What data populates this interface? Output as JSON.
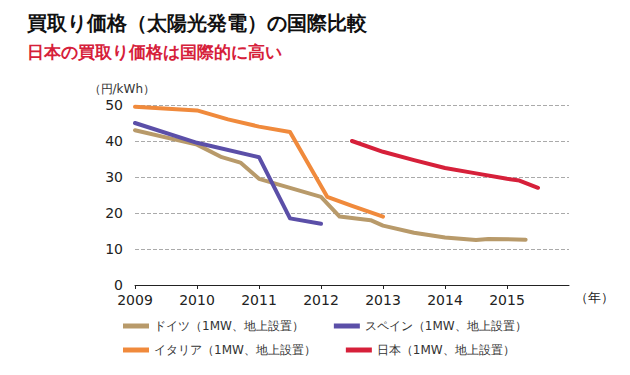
{
  "chart_data": {
    "type": "line",
    "title": "買取り価格（太陽光発電）の国際比較",
    "subtitle": "日本の買取り価格は国際的に高い",
    "x_label": "（年）",
    "y_label": "（円/kWh）",
    "xlim": [
      2009,
      2016
    ],
    "xticks": [
      2009,
      2010,
      2011,
      2012,
      2013,
      2014,
      2015
    ],
    "ylim": [
      0,
      50
    ],
    "yticks": [
      0,
      10,
      20,
      30,
      40,
      50
    ],
    "grid": true,
    "legend": "bottom",
    "series": [
      {
        "name": "ドイツ（1MW、地上設置）",
        "color": "#b89a6a",
        "x": [
          2009,
          2010,
          2010.4,
          2010.7,
          2011,
          2011.5,
          2012,
          2012.3,
          2012.8,
          2013,
          2013.5,
          2014,
          2014.5,
          2014.7,
          2015.3
        ],
        "values": [
          43,
          39,
          35.5,
          34,
          29.5,
          27,
          24.5,
          19,
          18,
          16.5,
          14.5,
          13.2,
          12.5,
          12.8,
          12.6
        ]
      },
      {
        "name": "スペイン（1MW、地上設置）",
        "color": "#5b4fa8",
        "x": [
          2009,
          2010,
          2011,
          2011.5,
          2012
        ],
        "values": [
          45,
          39.5,
          35.5,
          18.5,
          17
        ]
      },
      {
        "name": "イタリア（1MW、地上設置）",
        "color": "#f08a3c",
        "x": [
          2009,
          2010,
          2010.5,
          2011,
          2011.5,
          2012.1,
          2012.5,
          2013
        ],
        "values": [
          49.5,
          48.5,
          46,
          44,
          42.5,
          24.5,
          22,
          19
        ]
      },
      {
        "name": "日本（1MW、地上設置）",
        "color": "#d6203a",
        "x": [
          2012.5,
          2013,
          2013.5,
          2014,
          2014.5,
          2015,
          2015.2,
          2015.5
        ],
        "values": [
          40,
          37,
          34.7,
          32.5,
          31,
          29.5,
          29,
          27
        ]
      }
    ]
  }
}
